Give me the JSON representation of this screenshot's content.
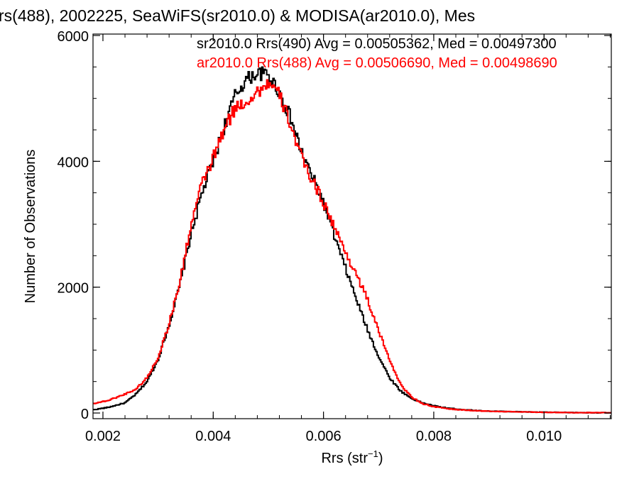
{
  "chart_data": {
    "type": "line",
    "title": "rs(488), 2002225, SeaWiFS(sr2010.0) & MODISA(ar2010.0), Mes",
    "xlabel": "Rrs (str",
    "xlabel_sup": "−1",
    "xlabel_close": ")",
    "ylabel": "Number of Observations",
    "xlim": [
      0.00182,
      0.01122
    ],
    "ylim": [
      0,
      6000
    ],
    "x_ticks": [
      0.002,
      0.004,
      0.006,
      0.008,
      0.01
    ],
    "x_tick_labels": [
      "0.002",
      "0.004",
      "0.006",
      "0.008",
      "0.010"
    ],
    "y_ticks": [
      0,
      2000,
      4000,
      6000
    ],
    "y_tick_labels": [
      "0",
      "2000",
      "4000",
      "6000"
    ],
    "grid": false,
    "legend_placement": "top-right",
    "plot_style": "histogram-step",
    "series": [
      {
        "name": "sr2010.0 Rrs(490) Avg = 0.00505362, Med = 0.00497300",
        "color": "#000000",
        "points": [
          [
            0.00182,
            50
          ],
          [
            0.0021,
            90
          ],
          [
            0.0024,
            160
          ],
          [
            0.0026,
            300
          ],
          [
            0.0028,
            500
          ],
          [
            0.003,
            850
          ],
          [
            0.0032,
            1400
          ],
          [
            0.0034,
            2050
          ],
          [
            0.0036,
            2850
          ],
          [
            0.0038,
            3500
          ],
          [
            0.004,
            4000
          ],
          [
            0.0042,
            4550
          ],
          [
            0.0044,
            5050
          ],
          [
            0.0046,
            5300
          ],
          [
            0.0048,
            5400
          ],
          [
            0.005,
            5380
          ],
          [
            0.0052,
            5100
          ],
          [
            0.0054,
            4700
          ],
          [
            0.0056,
            4150
          ],
          [
            0.0058,
            3750
          ],
          [
            0.006,
            3350
          ],
          [
            0.0062,
            2800
          ],
          [
            0.0064,
            2300
          ],
          [
            0.0066,
            1800
          ],
          [
            0.0068,
            1320
          ],
          [
            0.007,
            900
          ],
          [
            0.0072,
            560
          ],
          [
            0.0074,
            350
          ],
          [
            0.0076,
            230
          ],
          [
            0.0078,
            160
          ],
          [
            0.008,
            115
          ],
          [
            0.0082,
            85
          ],
          [
            0.0084,
            65
          ],
          [
            0.0086,
            50
          ],
          [
            0.0088,
            38
          ],
          [
            0.009,
            30
          ],
          [
            0.0094,
            22
          ],
          [
            0.0098,
            15
          ],
          [
            0.0102,
            10
          ],
          [
            0.0106,
            6
          ],
          [
            0.01122,
            4
          ]
        ]
      },
      {
        "name": "ar2010.0 Rrs(488) Avg = 0.00506690, Med = 0.00498690",
        "color": "#ff0000",
        "points": [
          [
            0.00182,
            150
          ],
          [
            0.0021,
            200
          ],
          [
            0.0024,
            300
          ],
          [
            0.0026,
            380
          ],
          [
            0.0028,
            560
          ],
          [
            0.003,
            880
          ],
          [
            0.0032,
            1420
          ],
          [
            0.0034,
            2100
          ],
          [
            0.0036,
            3000
          ],
          [
            0.0038,
            3650
          ],
          [
            0.004,
            4050
          ],
          [
            0.0042,
            4500
          ],
          [
            0.0044,
            4850
          ],
          [
            0.0046,
            4950
          ],
          [
            0.0048,
            5100
          ],
          [
            0.005,
            5250
          ],
          [
            0.0052,
            5050
          ],
          [
            0.0054,
            4600
          ],
          [
            0.0056,
            4050
          ],
          [
            0.0058,
            3700
          ],
          [
            0.006,
            3350
          ],
          [
            0.0062,
            2950
          ],
          [
            0.0064,
            2550
          ],
          [
            0.0066,
            2200
          ],
          [
            0.0068,
            1800
          ],
          [
            0.007,
            1300
          ],
          [
            0.0072,
            850
          ],
          [
            0.0074,
            450
          ],
          [
            0.0076,
            250
          ],
          [
            0.0078,
            150
          ],
          [
            0.008,
            100
          ],
          [
            0.0082,
            75
          ],
          [
            0.0084,
            55
          ],
          [
            0.0086,
            45
          ],
          [
            0.0088,
            35
          ],
          [
            0.009,
            28
          ],
          [
            0.0094,
            20
          ],
          [
            0.0098,
            14
          ],
          [
            0.0102,
            9
          ],
          [
            0.0106,
            6
          ],
          [
            0.01122,
            4
          ]
        ]
      }
    ]
  }
}
